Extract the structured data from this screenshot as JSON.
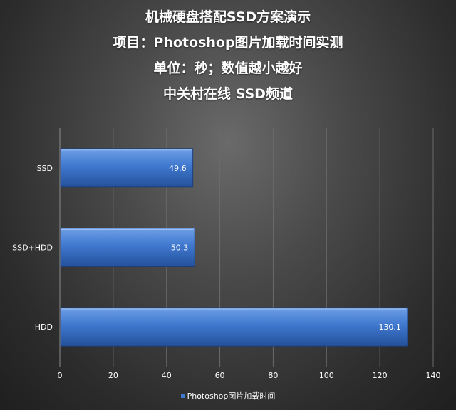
{
  "titles": [
    "机械硬盘搭配SSD方案演示",
    "项目：Photoshop图片加载时间实测",
    "单位：秒；数值越小越好",
    "中关村在线  SSD频道"
  ],
  "colors": {
    "bar_top": "#6fa0e6",
    "bar_main": "#3f78cf",
    "bar_bottom": "#24519a",
    "bar_stroke": "#1d3f78",
    "grid": "#6a6a6a",
    "text": "#ffffff"
  },
  "chart_data": {
    "type": "bar",
    "orientation": "horizontal",
    "categories": [
      "SSD",
      "SSD+HDD",
      "HDD"
    ],
    "series": [
      {
        "name": "Photoshop图片加载时间",
        "values": [
          49.6,
          50.3,
          130.1
        ]
      }
    ],
    "value_labels": [
      "49.6",
      "50.3",
      "130.1"
    ],
    "xlim": [
      0,
      140
    ],
    "xticks": [
      "0",
      "20",
      "40",
      "60",
      "80",
      "100",
      "120",
      "140"
    ],
    "grid": true,
    "legend_position": "bottom"
  }
}
